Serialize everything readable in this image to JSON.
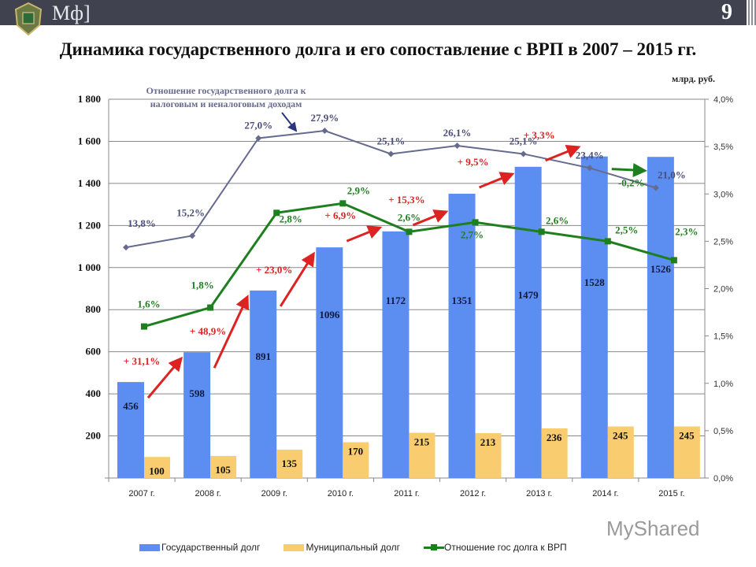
{
  "header": {
    "brand": "Мф]",
    "page_number": "9",
    "logo_icon": "ministry-emblem"
  },
  "title": "Динамика государственного долга и его сопоставление с ВРП в 2007 – 2015 гг.",
  "unit": "млрд. руб.",
  "watermark": "MyShared",
  "chart_data": {
    "type": "bar",
    "categories": [
      "2007 г.",
      "2008 г.",
      "2009 г.",
      "2010 г.",
      "2011 г.",
      "2012 г.",
      "2013 г.",
      "2014 г.",
      "2015 г."
    ],
    "left_axis": {
      "range": [
        0,
        1800
      ],
      "ticks": [
        "200",
        "400",
        "600",
        "800",
        "1 000",
        "1 200",
        "1 400",
        "1 600",
        "1 800"
      ]
    },
    "right_axis": {
      "range": [
        0,
        4.0
      ],
      "ticks": [
        "0,0%",
        "0,5%",
        "1,0%",
        "1,5%",
        "2,0%",
        "2,5%",
        "3,0%",
        "3,5%",
        "4,0%"
      ]
    },
    "grid": true,
    "legend_placement": "bottom",
    "series": [
      {
        "name": "Государственный долг",
        "type": "bar",
        "color": "#5b8ef0",
        "values": [
          456,
          598,
          891,
          1096,
          1172,
          1351,
          1479,
          1528,
          1526
        ]
      },
      {
        "name": "Муниципальный долг",
        "type": "bar",
        "color": "#f9cc70",
        "values": [
          100,
          105,
          135,
          170,
          215,
          213,
          236,
          245,
          245
        ]
      },
      {
        "name": "Отношение гос долга к ВРП",
        "type": "line",
        "axis": "right",
        "color": "#1e7f1e",
        "values": [
          1.6,
          1.8,
          2.8,
          2.9,
          2.6,
          2.7,
          2.6,
          2.5,
          2.3
        ],
        "labels": [
          "1,6%",
          "1,8%",
          "2,8%",
          "2,9%",
          "2,6%",
          "2,7%",
          "2,6%",
          "2,5%",
          "2,3%"
        ]
      },
      {
        "type": "line",
        "color": "#666a8e",
        "values": [
          13.8,
          15.2,
          27.0,
          27.9,
          25.1,
          26.1,
          25.1,
          23.4,
          21.0
        ],
        "labels": [
          "13,8%",
          "15,2%",
          "27,0%",
          "27,9%",
          "25,1%",
          "26,1%",
          "25,1%",
          "23,4%",
          "21,0%"
        ]
      }
    ],
    "annotation": "Отношение государственного долга к налоговым и неналоговым доходам",
    "annotation_lines": [
      "Отношение государственного долга к",
      "налоговым и неналоговым доходам"
    ],
    "growth_labels": [
      "+ 31,1%",
      "+ 48,9%",
      "+ 23,0%",
      "+ 6,9%",
      "+ 15,3%",
      "+ 9,5%",
      "+ 3,3%",
      "-0,2%"
    ],
    "growth_colors": {
      "up": "#dd2222",
      "down": "#1e7f1e"
    }
  }
}
